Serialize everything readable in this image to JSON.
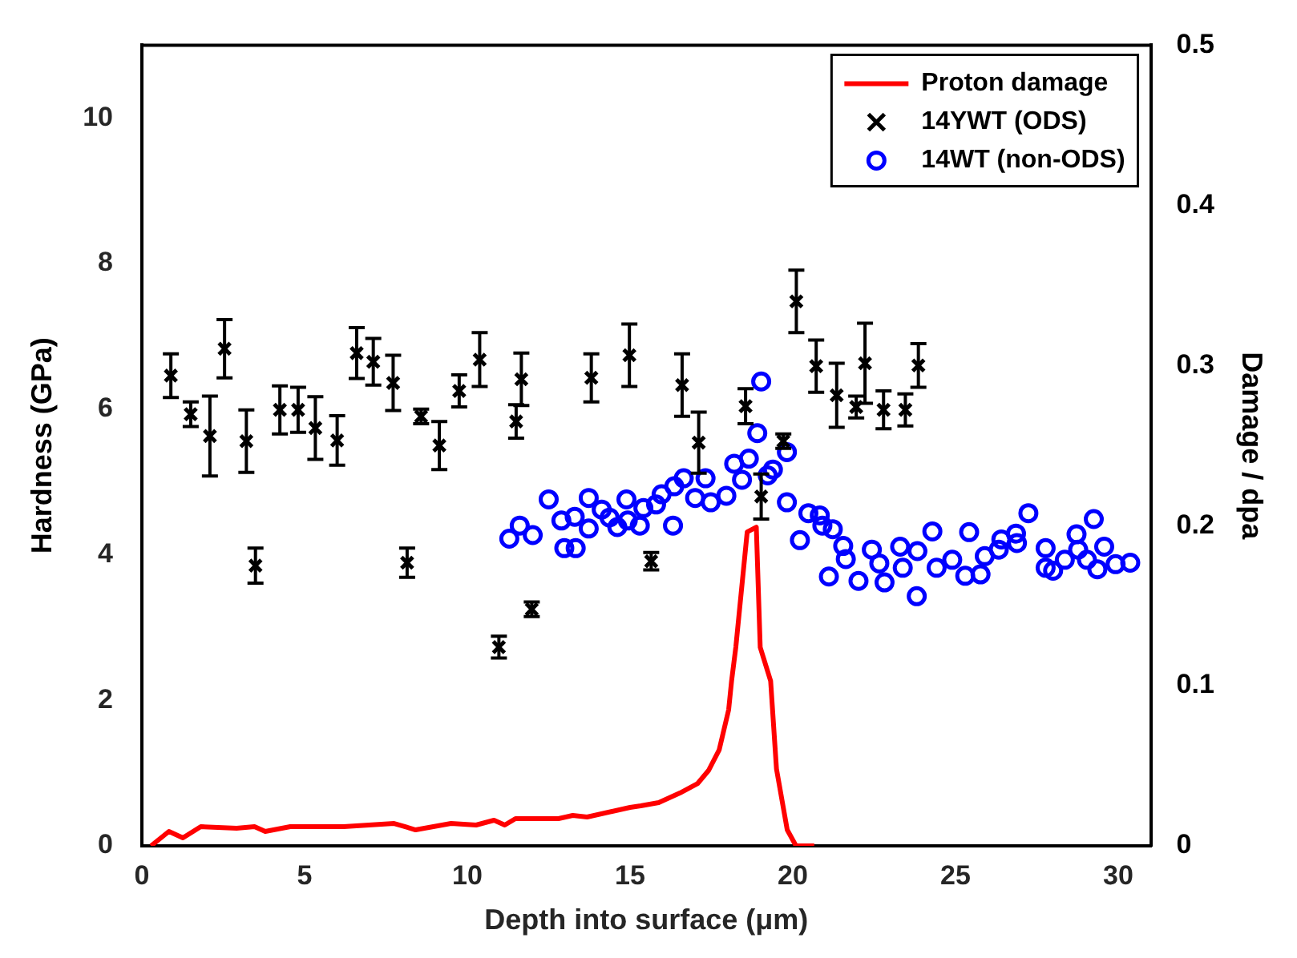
{
  "chart_data": {
    "type": "scatter",
    "xlabel": "Depth into surface (μm)",
    "ylabel": "Hardness (GPa)",
    "y2label": "Damage / dpa",
    "xlim": [
      0,
      31
    ],
    "xticks": [
      0,
      5,
      10,
      15,
      20,
      25,
      30
    ],
    "ylim": [
      0,
      11
    ],
    "yticks": [
      0,
      2,
      4,
      6,
      8,
      10
    ],
    "y2lim": [
      0,
      0.5
    ],
    "y2ticks": [
      0,
      0.1,
      0.2,
      0.3,
      0.4,
      0.5
    ],
    "grid": false,
    "legend": "top right",
    "series": [
      {
        "name": "Proton damage",
        "type": "line",
        "axis": "y2",
        "color": "#ff0000",
        "marker": "none",
        "line_style": "solid",
        "x": [
          0.28,
          0.83,
          1.26,
          1.81,
          2.91,
          3.46,
          3.79,
          4.56,
          6.2,
          7.75,
          8.41,
          9.5,
          10.27,
          10.82,
          11.15,
          11.48,
          12.8,
          13.24,
          13.68,
          15.0,
          15.33,
          15.88,
          16.53,
          17.08,
          17.41,
          17.74,
          18.03,
          18.12,
          18.25,
          18.6,
          18.88,
          19.0,
          19.32,
          19.5,
          19.83,
          20.1,
          20.66
        ],
        "values": [
          0,
          0.009,
          0.005,
          0.012,
          0.011,
          0.012,
          0.009,
          0.012,
          0.012,
          0.014,
          0.01,
          0.014,
          0.013,
          0.016,
          0.013,
          0.017,
          0.017,
          0.019,
          0.018,
          0.024,
          0.025,
          0.027,
          0.033,
          0.039,
          0.047,
          0.06,
          0.085,
          0.103,
          0.124,
          0.196,
          0.199,
          0.124,
          0.103,
          0.048,
          0.01,
          0,
          0
        ]
      },
      {
        "name": "14YWT (ODS)",
        "color": "#000000",
        "marker": "cross",
        "x": [
          0.89,
          1.5,
          2.09,
          2.54,
          3.21,
          3.49,
          4.24,
          4.8,
          5.33,
          6.0,
          6.6,
          7.11,
          7.72,
          8.15,
          8.58,
          9.14,
          9.75,
          10.38,
          10.97,
          11.5,
          11.66,
          11.98,
          13.81,
          14.98,
          15.65,
          16.6,
          17.11,
          18.55,
          19.03,
          19.71,
          20.11,
          20.72,
          21.35,
          21.95,
          22.22,
          22.79,
          23.46,
          23.86
        ],
        "values": [
          6.46,
          5.93,
          5.63,
          6.83,
          5.56,
          3.85,
          5.99,
          5.99,
          5.74,
          5.57,
          6.77,
          6.65,
          6.36,
          3.89,
          5.9,
          5.5,
          6.25,
          6.68,
          2.73,
          5.83,
          6.41,
          3.25,
          6.43,
          6.74,
          3.91,
          6.33,
          5.54,
          6.04,
          4.8,
          5.56,
          7.48,
          6.59,
          6.19,
          6.03,
          6.63,
          5.99,
          5.99,
          6.6
        ],
        "errors": [
          0.3,
          0.17,
          0.55,
          0.4,
          0.43,
          0.24,
          0.33,
          0.31,
          0.43,
          0.34,
          0.35,
          0.32,
          0.38,
          0.2,
          0.1,
          0.33,
          0.22,
          0.37,
          0.15,
          0.23,
          0.36,
          0.1,
          0.33,
          0.43,
          0.12,
          0.43,
          0.42,
          0.24,
          0.31,
          0.1,
          0.43,
          0.36,
          0.44,
          0.15,
          0.55,
          0.26,
          0.22,
          0.3
        ]
      },
      {
        "name": "14WT (non-ODS)",
        "color": "#0000ff",
        "marker": "circle",
        "x": [
          11.29,
          11.61,
          12.01,
          12.5,
          12.89,
          12.98,
          13.33,
          13.3,
          13.73,
          13.73,
          14.13,
          14.37,
          14.61,
          14.89,
          14.93,
          15.3,
          15.41,
          15.8,
          15.97,
          16.32,
          16.36,
          16.65,
          17.0,
          17.32,
          17.48,
          17.96,
          18.2,
          18.44,
          18.65,
          18.91,
          19.03,
          19.23,
          19.39,
          19.82,
          19.82,
          20.22,
          20.48,
          20.83,
          20.91,
          21.23,
          21.11,
          21.55,
          21.63,
          22.02,
          22.43,
          22.66,
          22.82,
          23.3,
          23.38,
          23.83,
          23.81,
          24.29,
          24.42,
          24.9,
          25.3,
          25.42,
          25.77,
          25.9,
          26.33,
          26.41,
          26.86,
          26.89,
          27.24,
          27.77,
          27.77,
          28.0,
          28.36,
          28.72,
          28.77,
          29.04,
          29.25,
          29.36,
          29.57,
          29.92,
          30.37
        ],
        "values": [
          4.22,
          4.4,
          4.27,
          4.76,
          4.47,
          4.09,
          4.09,
          4.52,
          4.78,
          4.36,
          4.62,
          4.51,
          4.38,
          4.76,
          4.47,
          4.4,
          4.64,
          4.69,
          4.83,
          4.4,
          4.94,
          5.05,
          4.78,
          5.05,
          4.72,
          4.81,
          5.25,
          5.03,
          5.32,
          5.67,
          6.38,
          5.09,
          5.17,
          5.41,
          4.72,
          4.2,
          4.57,
          4.54,
          4.4,
          4.35,
          3.7,
          4.12,
          3.94,
          3.64,
          4.07,
          3.88,
          3.62,
          4.11,
          3.82,
          4.05,
          3.43,
          4.32,
          3.82,
          3.93,
          3.71,
          4.31,
          3.73,
          3.98,
          4.07,
          4.21,
          4.29,
          4.16,
          4.57,
          4.09,
          3.82,
          3.78,
          3.93,
          4.28,
          4.07,
          3.93,
          4.49,
          3.8,
          4.11,
          3.87,
          3.89
        ]
      }
    ]
  }
}
